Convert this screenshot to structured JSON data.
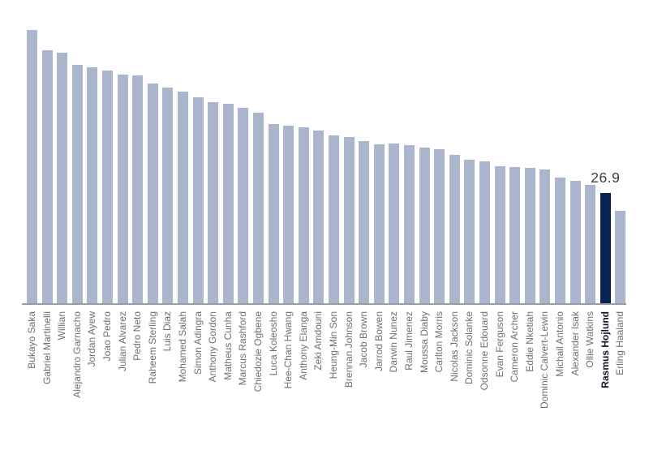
{
  "chart_data": {
    "type": "bar",
    "title": "",
    "xlabel": "",
    "ylabel": "",
    "grid": false,
    "legend": null,
    "ylim": [
      0,
      70
    ],
    "categories": [
      "Bukayo Saka",
      "Gabriel Martinelli",
      "Willian",
      "Alejandro Garnacho",
      "Jordan Ayew",
      "Joao Pedro",
      "Julian Alvarez",
      "Pedro Neto",
      "Raheem Sterling",
      "Luis Diaz",
      "Mohamed Salah",
      "Simon Adingra",
      "Anthony Gordon",
      "Matheus Cunha",
      "Marcus Rashford",
      "Chiedozie Ogbene",
      "Luca Koleosho",
      "Hee-Chan Hwang",
      "Anthony Elanga",
      "Zeki Amdouni",
      "Heung-Min Son",
      "Brennan Johnson",
      "Jacob Brown",
      "Jarrod Bowen",
      "Darwin Nunez",
      "Raul Jimenez",
      "Moussa Diaby",
      "Carlton Morris",
      "Nicolas Jackson",
      "Dominic Solanke",
      "Odsonne Edouard",
      "Evan Ferguson",
      "Cameron Archer",
      "Eddie Nketiah",
      "Dominic Calvert-Lewin",
      "Michail Antonio",
      "Alexander Isak",
      "Ollie Watkins",
      "Rasmus Hojlund",
      "Erling Haaland"
    ],
    "values": [
      66.3,
      61.5,
      60.9,
      57.9,
      57.3,
      56.5,
      55.6,
      55.4,
      53.4,
      52.4,
      51.4,
      50.1,
      48.9,
      48.5,
      47.5,
      46.3,
      43.6,
      43.2,
      42.8,
      42.0,
      40.8,
      40.5,
      39.5,
      38.6,
      38.8,
      38.4,
      37.8,
      37.6,
      36.1,
      35.0,
      34.5,
      33.4,
      33.2,
      33.0,
      32.6,
      30.6,
      29.8,
      28.9,
      26.9,
      22.6
    ],
    "bar_color": "#a9b6ce",
    "axis_line_color": "#9c9c9c",
    "tick_label_color": "#6f6f6f",
    "highlight": {
      "category": "Rasmus Hojlund",
      "index": 38,
      "value": 26.9,
      "bar_color": "#0a2253",
      "label_color": "#101025",
      "annotation_text": "26.9",
      "annotation_color": "#3f3f3f"
    }
  }
}
